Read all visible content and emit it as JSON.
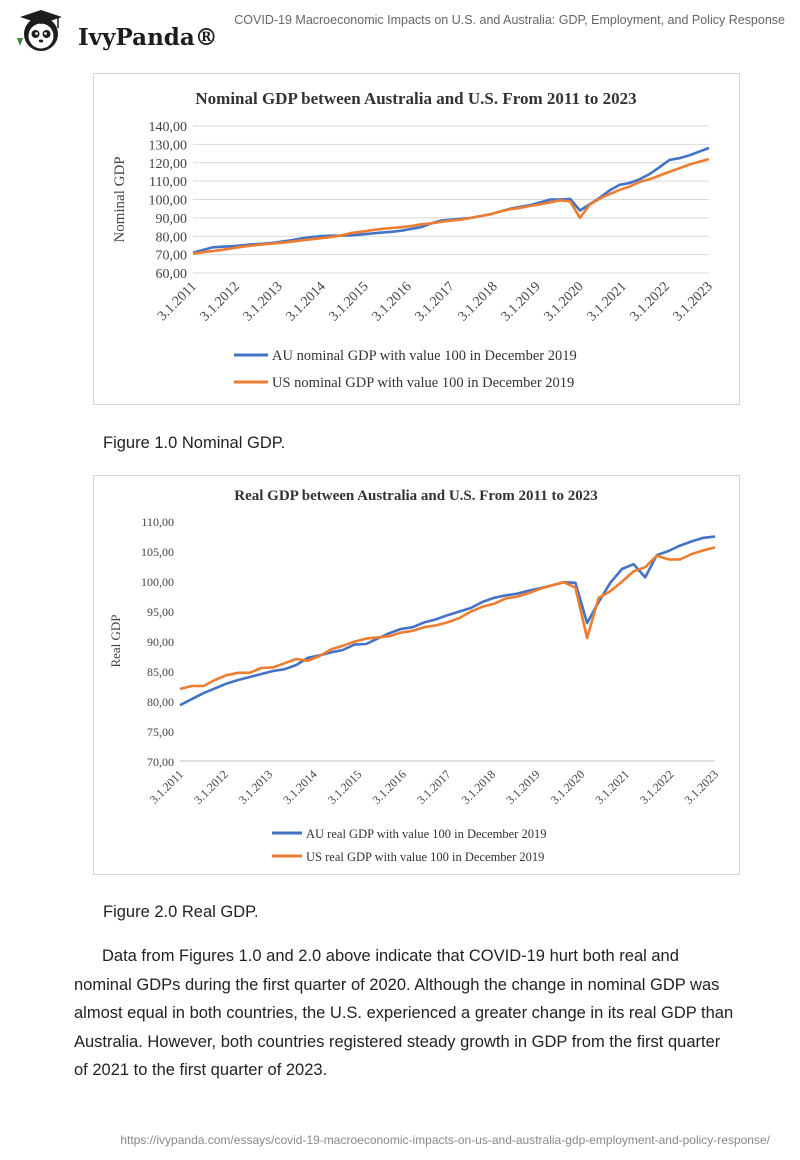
{
  "header": {
    "brand": "IvyPanda®",
    "doc_title": "COVID-19 Macroeconomic Impacts on U.S. and Australia: GDP, Employment, and Policy Response"
  },
  "colors": {
    "au": "#4472c4",
    "us": "#ed7d31",
    "grid": "#d9d9d9"
  },
  "captions": {
    "fig1": "Figure 1.0 Nominal GDP.",
    "fig2": "Figure 2.0 Real GDP."
  },
  "body_text": "Data from Figures 1.0 and 2.0 above indicate that COVID-19 hurt both real and nominal GDPs during the first quarter of 2020. Although the change in nominal GDP was almost equal in both countries, the U.S. experienced a greater change in its real GDP than Australia. However, both countries registered steady growth in GDP from the first quarter of 2021 to the first quarter of 2023.",
  "footer": {
    "url": "https://ivypanda.com/essays/covid-19-macroeconomic-impacts-on-us-and-australia-gdp-employment-and-policy-response/"
  },
  "chart_data": [
    {
      "type": "line",
      "title": "Nominal GDP between Australia and U.S. From 2011 to 2023",
      "xlabel": "",
      "ylabel": "Nominal GDP",
      "ylim": [
        60,
        140
      ],
      "yticks": [
        "60,00",
        "70,00",
        "80,00",
        "90,00",
        "100,00",
        "110,00",
        "120,00",
        "130,00",
        "140,00"
      ],
      "xticks": [
        "3.1.2011",
        "3.1.2012",
        "3.1.2013",
        "3.1.2014",
        "3.1.2015",
        "3.1.2016",
        "3.1.2017",
        "3.1.2018",
        "3.1.2019",
        "3.1.2020",
        "3.1.2021",
        "3.1.2022",
        "3.1.2023"
      ],
      "grid": true,
      "legend": "bottom",
      "series": [
        {
          "name": "AU nominal GDP with value 100 in December 2019",
          "values": [
            71,
            72.5,
            74,
            74.3,
            74.6,
            75.1,
            75.6,
            75.9,
            76.4,
            77.1,
            77.9,
            78.9,
            79.6,
            80.1,
            80.3,
            80.3,
            80.5,
            81,
            81.5,
            82,
            82.4,
            83,
            84,
            85,
            87,
            88.5,
            89,
            89.5,
            90,
            91,
            92,
            93.5,
            95,
            96,
            97,
            98.4,
            100,
            100,
            100.3,
            94,
            97.5,
            101,
            105,
            108,
            109,
            111,
            113.8,
            117.5,
            121.5,
            122.5,
            124,
            126,
            128
          ]
        },
        {
          "name": "US nominal GDP with value 100 in December 2019",
          "values": [
            70.5,
            71.3,
            71.9,
            72.6,
            73.5,
            74.3,
            75,
            75.5,
            76,
            76.5,
            77.1,
            77.8,
            78.4,
            79,
            79.6,
            80.5,
            81.8,
            82.5,
            83.3,
            84,
            84.5,
            84.9,
            85.6,
            86.5,
            87,
            87.8,
            88.5,
            89,
            90,
            91,
            92,
            93.5,
            94.7,
            95.5,
            96.5,
            97.4,
            98.5,
            99.5,
            99,
            90,
            97.3,
            100.5,
            103,
            105.3,
            107,
            109.5,
            111,
            113,
            115,
            117,
            119,
            120.5,
            122
          ]
        }
      ]
    },
    {
      "type": "line",
      "title": "Real GDP between Australia and U.S. From 2011 to 2023",
      "xlabel": "",
      "ylabel": "Real GDP",
      "ylim": [
        70,
        110
      ],
      "yticks": [
        "70,00",
        "75,00",
        "80,00",
        "85,00",
        "90,00",
        "95,00",
        "100,00",
        "105,00",
        "110,00"
      ],
      "xticks": [
        "3.1.2011",
        "3.1.2012",
        "3.1.2013",
        "3.1.2014",
        "3.1.2015",
        "3.1.2016",
        "3.1.2017",
        "3.1.2018",
        "3.1.2019",
        "3.1.2020",
        "3.1.2021",
        "3.1.2022",
        "3.1.2023"
      ],
      "grid": false,
      "legend": "bottom",
      "series": [
        {
          "name": "AU real GDP with value 100 in December 2019",
          "values": [
            79.3,
            80.3,
            81.3,
            82.1,
            82.9,
            83.5,
            84,
            84.5,
            85,
            85.3,
            86,
            87.2,
            87.6,
            88.1,
            88.5,
            89.4,
            89.5,
            90.4,
            91.3,
            92,
            92.3,
            93.1,
            93.6,
            94.3,
            94.9,
            95.5,
            96.5,
            97.2,
            97.6,
            97.9,
            98.4,
            98.8,
            99.3,
            99.8,
            99.7,
            93,
            96.5,
            99.7,
            102,
            102.8,
            100.6,
            104.3,
            105,
            105.9,
            106.6,
            107.2,
            107.4
          ]
        },
        {
          "name": "US real GDP with value 100 in December 2019",
          "values": [
            82,
            82.5,
            82.5,
            83.5,
            84.3,
            84.7,
            84.7,
            85.5,
            85.6,
            86.3,
            87,
            86.7,
            87.5,
            88.6,
            89.2,
            89.9,
            90.4,
            90.6,
            90.8,
            91.4,
            91.7,
            92.3,
            92.6,
            93.1,
            93.8,
            94.9,
            95.7,
            96.2,
            97.1,
            97.4,
            98,
            98.7,
            99.3,
            99.8,
            98.9,
            90.5,
            97.2,
            98.3,
            99.9,
            101.6,
            102.3,
            104.2,
            103.6,
            103.6,
            104.5,
            105.1,
            105.6
          ]
        }
      ]
    }
  ]
}
